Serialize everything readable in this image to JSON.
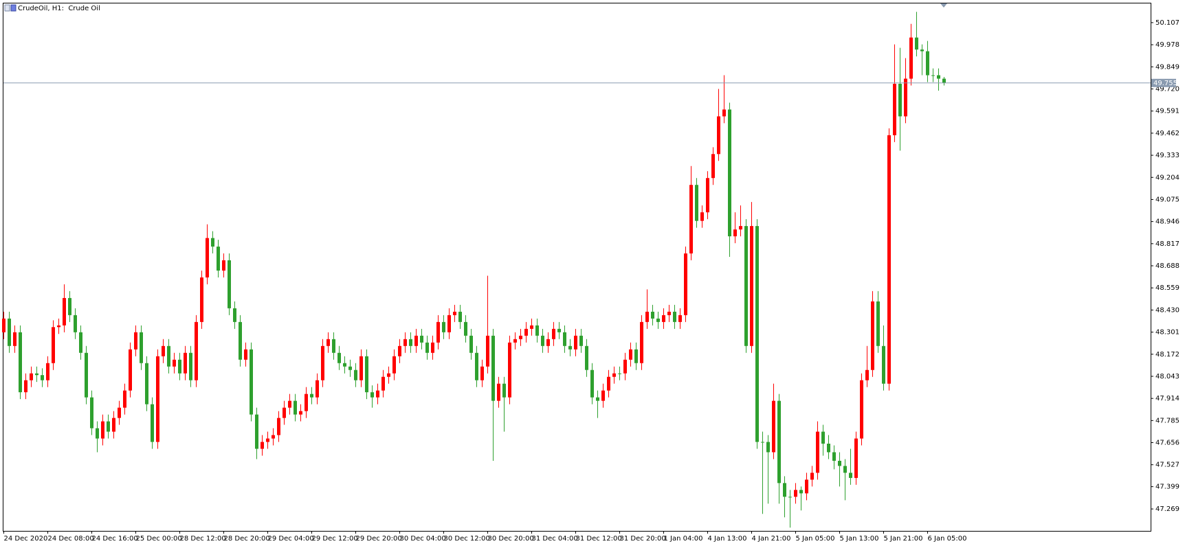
{
  "chart_data": {
    "type": "candlestick",
    "title": "CrudeOil, H1:  Crude Oil",
    "up_color": "#ff0000",
    "down_color": "#2ea02e",
    "price_line": 49.755,
    "price_line_color": "#8a9bb0",
    "ylim": [
      47.141,
      50.217
    ],
    "yticks": [
      47.269,
      47.399,
      47.527,
      47.656,
      47.785,
      47.914,
      48.043,
      48.172,
      48.301,
      {
        "value": 48.43,
        "label": "48.430"
      },
      48.559,
      48.688,
      48.817,
      48.946,
      49.075,
      49.204,
      49.333,
      49.462,
      49.591,
      {
        "value": 49.72,
        "label": "49.720"
      },
      49.849,
      49.978,
      50.107
    ],
    "categories": [
      "24 Dec 2020",
      null,
      null,
      null,
      null,
      null,
      null,
      null,
      "24 Dec 08:00",
      null,
      null,
      null,
      null,
      null,
      null,
      null,
      "24 Dec 16:00",
      null,
      null,
      null,
      null,
      null,
      null,
      null,
      "25 Dec 00:00",
      null,
      null,
      null,
      null,
      null,
      null,
      null,
      "28 Dec 12:00",
      null,
      null,
      null,
      null,
      null,
      null,
      null,
      "28 Dec 20:00",
      null,
      null,
      null,
      null,
      null,
      null,
      null,
      "29 Dec 04:00",
      null,
      null,
      null,
      null,
      null,
      null,
      null,
      "29 Dec 12:00",
      null,
      null,
      null,
      null,
      null,
      null,
      null,
      "29 Dec 20:00",
      null,
      null,
      null,
      null,
      null,
      null,
      null,
      "30 Dec 04:00",
      null,
      null,
      null,
      null,
      null,
      null,
      null,
      "30 Dec 12:00",
      null,
      null,
      null,
      null,
      null,
      null,
      null,
      "30 Dec 20:00",
      null,
      null,
      null,
      null,
      null,
      null,
      null,
      "31 Dec 04:00",
      null,
      null,
      null,
      null,
      null,
      null,
      null,
      "31 Dec 12:00",
      null,
      null,
      null,
      null,
      null,
      null,
      null,
      "31 Dec 20:00",
      null,
      null,
      null,
      null,
      null,
      null,
      null,
      "1 Jan 04:00",
      null,
      null,
      null,
      null,
      null,
      null,
      null,
      "4 Jan 13:00",
      null,
      null,
      null,
      null,
      null,
      null,
      null,
      "4 Jan 21:00",
      null,
      null,
      null,
      null,
      null,
      null,
      null,
      "5 Jan 05:00",
      null,
      null,
      null,
      null,
      null,
      null,
      null,
      "5 Jan 13:00",
      null,
      null,
      null,
      null,
      null,
      null,
      null,
      "5 Jan 21:00",
      null,
      null,
      null,
      null,
      null,
      null,
      null,
      "6 Jan 05:00",
      null,
      null,
      null
    ],
    "open": [
      48.3,
      48.38,
      48.22,
      48.3,
      47.95,
      48.02,
      48.06,
      48.05,
      48.02,
      48.12,
      48.33,
      48.34,
      48.5,
      48.4,
      48.3,
      48.18,
      47.92,
      47.74,
      47.68,
      47.78,
      47.72,
      47.8,
      47.86,
      47.96,
      48.2,
      48.3,
      48.12,
      47.88,
      47.66,
      48.16,
      48.22,
      48.1,
      48.14,
      48.06,
      48.18,
      48.02,
      48.36,
      48.62,
      48.85,
      48.8,
      48.66,
      48.72,
      48.44,
      48.36,
      48.14,
      48.2,
      47.82,
      47.62,
      47.66,
      47.68,
      47.7,
      47.8,
      47.86,
      47.9,
      47.82,
      47.84,
      47.94,
      47.92,
      48.02,
      48.22,
      48.26,
      48.18,
      48.12,
      48.1,
      48.08,
      48.02,
      48.16,
      47.95,
      47.92,
      47.96,
      48.04,
      48.06,
      48.16,
      48.22,
      48.26,
      48.22,
      48.28,
      48.24,
      48.18,
      48.24,
      48.36,
      48.3,
      48.4,
      48.42,
      48.36,
      48.28,
      48.18,
      48.02,
      48.1,
      48.28,
      47.9,
      48.0,
      47.92,
      48.24,
      48.26,
      48.28,
      48.32,
      48.34,
      48.28,
      48.22,
      48.26,
      48.32,
      48.3,
      48.22,
      48.2,
      48.28,
      48.22,
      48.08,
      47.92,
      47.9,
      47.96,
      48.04,
      48.06,
      48.06,
      48.14,
      48.2,
      48.12,
      48.36,
      48.42,
      48.38,
      48.36,
      48.4,
      48.42,
      48.36,
      48.4,
      48.76,
      49.16,
      48.95,
      49.0,
      49.2,
      49.34,
      49.56,
      49.6,
      48.86,
      48.9,
      48.92,
      48.22,
      48.92,
      47.66,
      47.66,
      47.6,
      47.9,
      47.42,
      47.34,
      47.34,
      47.38,
      47.36,
      47.44,
      47.48,
      47.72,
      47.65,
      47.6,
      47.55,
      47.52,
      47.48,
      47.45,
      47.68,
      48.02,
      48.08,
      48.48,
      48.22,
      48.0,
      49.45,
      49.75,
      49.56,
      49.78,
      50.02,
      49.95,
      49.94,
      49.8,
      49.8,
      49.78
    ],
    "high": [
      48.42,
      48.42,
      48.34,
      48.34,
      48.06,
      48.1,
      48.1,
      48.09,
      48.16,
      48.37,
      48.38,
      48.58,
      48.54,
      48.44,
      48.34,
      48.22,
      47.96,
      47.78,
      47.82,
      47.82,
      47.84,
      47.9,
      48.0,
      48.24,
      48.34,
      48.34,
      48.16,
      47.92,
      48.2,
      48.26,
      48.26,
      48.18,
      48.18,
      48.22,
      48.22,
      48.4,
      48.66,
      48.93,
      48.89,
      48.84,
      48.76,
      48.76,
      48.48,
      48.4,
      48.24,
      48.24,
      47.86,
      47.7,
      47.72,
      47.74,
      47.84,
      47.9,
      47.94,
      47.94,
      47.88,
      47.98,
      47.98,
      48.06,
      48.26,
      48.3,
      48.3,
      48.22,
      48.16,
      48.14,
      48.12,
      48.2,
      48.2,
      47.99,
      48.0,
      48.08,
      48.1,
      48.2,
      48.26,
      48.3,
      48.3,
      48.32,
      48.32,
      48.28,
      48.28,
      48.4,
      48.4,
      48.44,
      48.46,
      48.46,
      48.4,
      48.32,
      48.22,
      48.14,
      48.63,
      48.32,
      48.04,
      48.04,
      48.28,
      48.3,
      48.32,
      48.36,
      48.38,
      48.38,
      48.32,
      48.3,
      48.36,
      48.36,
      48.34,
      48.26,
      48.32,
      48.32,
      48.26,
      48.12,
      47.96,
      48.0,
      48.08,
      48.1,
      48.1,
      48.18,
      48.24,
      48.24,
      48.4,
      48.55,
      48.46,
      48.42,
      48.44,
      48.46,
      48.46,
      48.44,
      48.8,
      49.27,
      49.2,
      49.04,
      49.24,
      49.38,
      49.72,
      49.8,
      49.64,
      49.0,
      49.04,
      48.96,
      49.06,
      48.96,
      47.72,
      47.7,
      48.0,
      47.94,
      47.46,
      47.38,
      47.42,
      47.4,
      47.48,
      47.52,
      47.78,
      47.76,
      47.7,
      47.64,
      47.6,
      47.56,
      47.62,
      47.72,
      48.06,
      48.22,
      48.54,
      48.54,
      48.34,
      49.49,
      49.98,
      49.96,
      49.9,
      50.1,
      50.17,
      49.98,
      50.0,
      49.84,
      49.84,
      49.79
    ],
    "low": [
      48.26,
      48.18,
      48.18,
      47.91,
      47.91,
      47.98,
      48.01,
      47.98,
      47.98,
      48.08,
      48.29,
      48.3,
      48.36,
      48.26,
      48.14,
      47.88,
      47.7,
      47.6,
      47.64,
      47.68,
      47.68,
      47.76,
      47.82,
      47.92,
      48.16,
      48.08,
      47.84,
      47.62,
      47.62,
      48.12,
      48.06,
      48.06,
      48.02,
      48.02,
      47.98,
      47.98,
      48.32,
      48.58,
      48.76,
      48.62,
      48.62,
      48.4,
      48.32,
      48.1,
      48.1,
      47.78,
      47.56,
      47.58,
      47.62,
      47.64,
      47.66,
      47.76,
      47.82,
      47.78,
      47.78,
      47.8,
      47.88,
      47.88,
      47.98,
      48.18,
      48.14,
      48.08,
      48.06,
      48.04,
      47.98,
      47.98,
      47.91,
      47.86,
      47.88,
      47.92,
      48.0,
      48.02,
      48.12,
      48.18,
      48.18,
      48.18,
      48.2,
      48.14,
      48.14,
      48.2,
      48.26,
      48.26,
      48.36,
      48.32,
      48.24,
      48.14,
      47.98,
      47.98,
      48.06,
      47.55,
      47.86,
      47.72,
      47.88,
      48.2,
      48.22,
      48.24,
      48.28,
      48.24,
      48.18,
      48.18,
      48.22,
      48.26,
      48.18,
      48.16,
      48.16,
      48.18,
      48.04,
      47.88,
      47.8,
      47.86,
      47.92,
      48.0,
      48.02,
      48.02,
      48.1,
      48.08,
      48.08,
      48.32,
      48.34,
      48.32,
      48.32,
      48.36,
      48.32,
      48.32,
      48.36,
      48.72,
      48.91,
      48.91,
      48.96,
      49.16,
      49.3,
      49.52,
      48.74,
      48.82,
      48.86,
      48.18,
      48.18,
      47.62,
      47.24,
      47.3,
      47.56,
      47.3,
      47.22,
      47.16,
      47.3,
      47.26,
      47.32,
      47.4,
      47.44,
      47.58,
      47.56,
      47.5,
      47.4,
      47.32,
      47.41,
      47.41,
      47.64,
      47.98,
      48.04,
      48.18,
      47.96,
      47.96,
      49.41,
      49.36,
      49.52,
      49.74,
      49.91,
      49.8,
      49.76,
      49.76,
      49.71,
      49.74
    ],
    "close": [
      48.38,
      48.22,
      48.3,
      47.95,
      48.02,
      48.06,
      48.05,
      48.02,
      48.12,
      48.33,
      48.34,
      48.5,
      48.4,
      48.3,
      48.18,
      47.92,
      47.74,
      47.68,
      47.78,
      47.72,
      47.8,
      47.86,
      47.96,
      48.2,
      48.3,
      48.12,
      47.88,
      47.66,
      48.16,
      48.22,
      48.1,
      48.14,
      48.06,
      48.18,
      48.02,
      48.36,
      48.62,
      48.85,
      48.8,
      48.66,
      48.72,
      48.44,
      48.36,
      48.14,
      48.2,
      47.82,
      47.62,
      47.66,
      47.68,
      47.7,
      47.8,
      47.86,
      47.9,
      47.82,
      47.84,
      47.94,
      47.92,
      48.02,
      48.22,
      48.26,
      48.18,
      48.12,
      48.1,
      48.08,
      48.02,
      48.16,
      47.95,
      47.92,
      47.96,
      48.04,
      48.06,
      48.16,
      48.22,
      48.26,
      48.22,
      48.28,
      48.24,
      48.18,
      48.24,
      48.36,
      48.3,
      48.4,
      48.42,
      48.36,
      48.28,
      48.18,
      48.02,
      48.1,
      48.28,
      47.9,
      48.0,
      47.92,
      48.24,
      48.26,
      48.28,
      48.32,
      48.34,
      48.28,
      48.22,
      48.26,
      48.32,
      48.3,
      48.22,
      48.2,
      48.28,
      48.22,
      48.08,
      47.92,
      47.9,
      47.96,
      48.04,
      48.06,
      48.06,
      48.14,
      48.2,
      48.12,
      48.36,
      48.42,
      48.38,
      48.36,
      48.4,
      48.42,
      48.36,
      48.4,
      48.76,
      49.16,
      48.95,
      49.0,
      49.2,
      49.34,
      49.56,
      49.6,
      48.86,
      48.9,
      48.92,
      48.22,
      48.92,
      47.66,
      47.66,
      47.6,
      47.9,
      47.42,
      47.34,
      47.34,
      47.38,
      47.36,
      47.44,
      47.48,
      47.72,
      47.65,
      47.6,
      47.55,
      47.52,
      47.48,
      47.45,
      47.68,
      48.02,
      48.08,
      48.48,
      48.22,
      48.0,
      49.45,
      49.75,
      49.56,
      49.78,
      50.02,
      49.95,
      49.94,
      49.8,
      49.8,
      49.78,
      49.755
    ]
  }
}
